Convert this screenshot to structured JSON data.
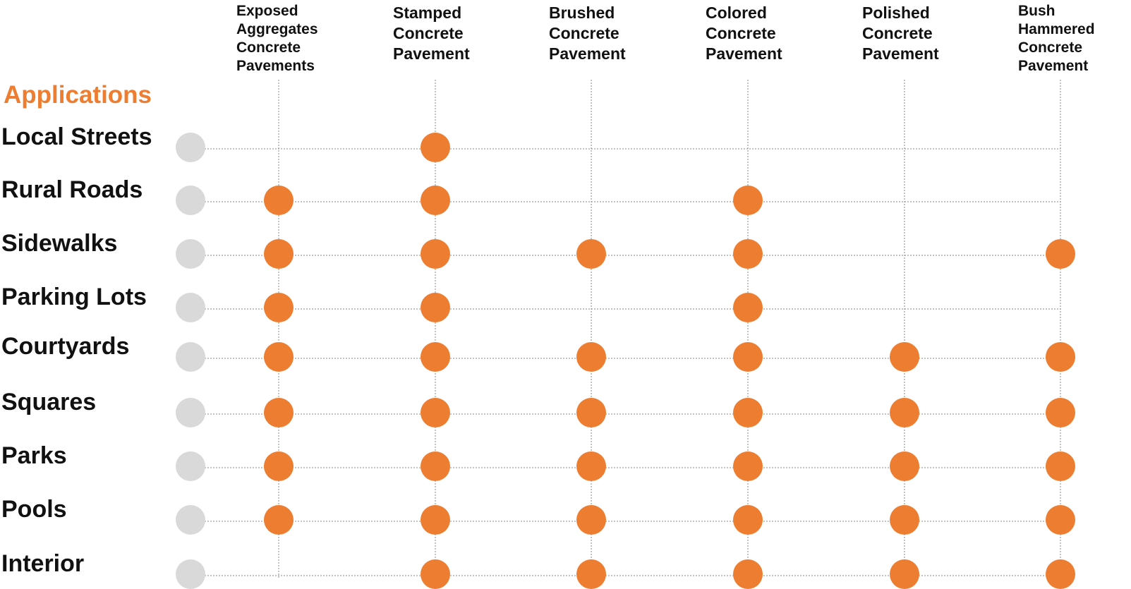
{
  "chart_data": {
    "type": "matrix",
    "title": "Applications",
    "columns": [
      [
        "Exposed",
        "Aggregates",
        "Concrete",
        "Pavements"
      ],
      [
        "Stamped",
        "Concrete",
        "Pavement"
      ],
      [
        "Brushed",
        "Concrete",
        "Pavement"
      ],
      [
        "Colored",
        "Concrete",
        "Pavement"
      ],
      [
        "Polished",
        "Concrete",
        "Pavement"
      ],
      [
        "Bush",
        "Hammered",
        "Concrete",
        "Pavement"
      ]
    ],
    "rows": [
      {
        "label": "Local Streets",
        "values": [
          0,
          1,
          0,
          0,
          0,
          0
        ]
      },
      {
        "label": "Rural Roads",
        "values": [
          1,
          1,
          0,
          1,
          0,
          0
        ]
      },
      {
        "label": "Sidewalks",
        "values": [
          1,
          1,
          1,
          1,
          0,
          1
        ]
      },
      {
        "label": "Parking Lots",
        "values": [
          1,
          1,
          0,
          1,
          0,
          0
        ]
      },
      {
        "label": "Courtyards",
        "values": [
          1,
          1,
          1,
          1,
          1,
          1
        ]
      },
      {
        "label": "Squares",
        "values": [
          1,
          1,
          1,
          1,
          1,
          1
        ]
      },
      {
        "label": "Parks",
        "values": [
          1,
          1,
          1,
          1,
          1,
          1
        ]
      },
      {
        "label": "Pools",
        "values": [
          1,
          1,
          1,
          1,
          1,
          1
        ]
      },
      {
        "label": "Interior",
        "values": [
          0,
          1,
          1,
          1,
          1,
          1
        ]
      }
    ],
    "colors": {
      "title": "#ED7D31",
      "marker_applicable": "#ED7D31",
      "row_marker": "#D9D9D9",
      "grid": "#8A8A8A",
      "text": "#111111"
    }
  }
}
